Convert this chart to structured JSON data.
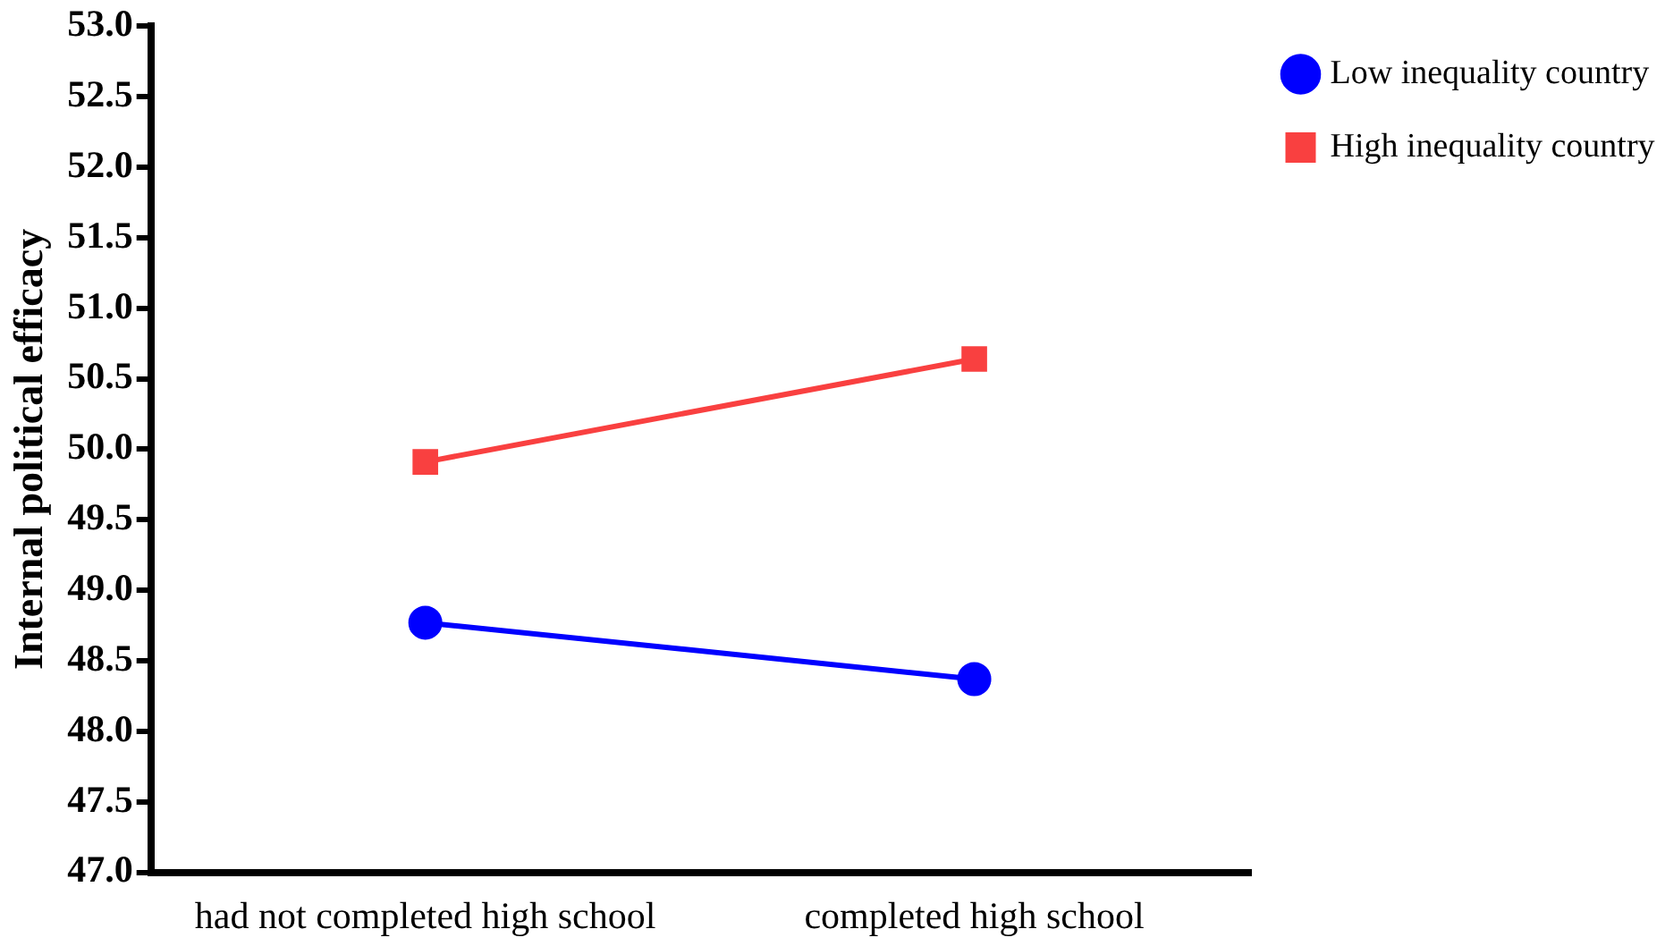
{
  "chart_data": {
    "type": "line",
    "ylabel": "Internal political efficacy",
    "categories": [
      "had not completed high school",
      "completed high school"
    ],
    "series": [
      {
        "name": "Low inequality country",
        "color": "#0000ff",
        "marker": "circle",
        "values": [
          48.77,
          48.37
        ]
      },
      {
        "name": "High inequality country",
        "color": "#f94040",
        "marker": "square",
        "values": [
          49.91,
          50.64
        ]
      }
    ],
    "ylim": [
      47.0,
      53.0
    ],
    "yticks": [
      {
        "value": 47,
        "label": "47.0"
      },
      {
        "value": 47.5,
        "label": "47.5"
      },
      {
        "value": 48,
        "label": "48.0"
      },
      {
        "value": 48.5,
        "label": "48.5"
      },
      {
        "value": 49,
        "label": "49.0"
      },
      {
        "value": 49.5,
        "label": "49.5"
      },
      {
        "value": 50,
        "label": "50.0"
      },
      {
        "value": 50.5,
        "label": "50.5"
      },
      {
        "value": 51,
        "label": "51.0"
      },
      {
        "value": 51.5,
        "label": "51.5"
      },
      {
        "value": 52,
        "label": "52.0"
      },
      {
        "value": 52.5,
        "label": "52.5"
      },
      {
        "value": 53,
        "label": "53.0"
      }
    ],
    "grid": false,
    "legend": "top right"
  }
}
